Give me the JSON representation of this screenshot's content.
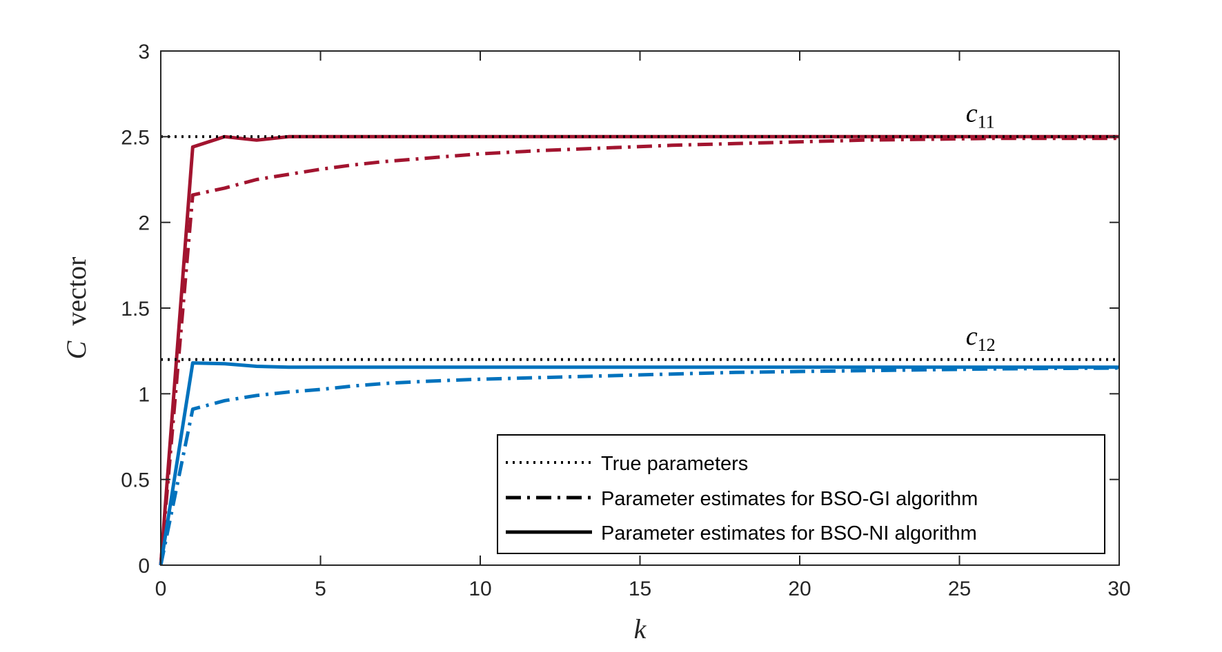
{
  "chart_data": {
    "type": "line",
    "xlabel": "k",
    "ylabel_symbol": "C",
    "ylabel_text": "vector",
    "xlim": [
      0,
      30
    ],
    "ylim": [
      0,
      3
    ],
    "xticks": [
      0,
      5,
      10,
      15,
      20,
      25,
      30
    ],
    "xtick_labels": [
      "0",
      "5",
      "10",
      "15",
      "20",
      "25",
      "30"
    ],
    "yticks": [
      0,
      0.5,
      1,
      1.5,
      2,
      2.5,
      3
    ],
    "ytick_labels": [
      "0",
      "0.5",
      "1",
      "1.5",
      "2",
      "2.5",
      "3"
    ],
    "grid": false,
    "legend_position": "bottom-right",
    "colors": {
      "c11": "#a2142f",
      "c12": "#0072bd",
      "true": "#000000",
      "axis": "#262626"
    },
    "annotations": [
      {
        "base": "c",
        "sub": "11",
        "x": 25.2,
        "y": 2.555
      },
      {
        "base": "c",
        "sub": "12",
        "x": 25.2,
        "y": 1.255
      }
    ],
    "legend": [
      {
        "label": "True parameters",
        "style": "dotted"
      },
      {
        "label": "Parameter estimates for BSO-GI algorithm",
        "style": "dashdot"
      },
      {
        "label": "Parameter estimates for BSO-NI algorithm",
        "style": "solid"
      }
    ],
    "series": [
      {
        "group": "c11",
        "kind": "true",
        "style": "dotted",
        "color": "#000000",
        "x": [
          0,
          30
        ],
        "y": [
          2.5,
          2.5
        ]
      },
      {
        "group": "c12",
        "kind": "true",
        "style": "dotted",
        "color": "#000000",
        "x": [
          0,
          30
        ],
        "y": [
          1.2,
          1.2
        ]
      },
      {
        "group": "c11",
        "kind": "BSO-GI",
        "style": "dashdot",
        "color": "#a2142f",
        "x": [
          0,
          1,
          2,
          3,
          4,
          5,
          6,
          7,
          8,
          9,
          10,
          12,
          14,
          16,
          18,
          20,
          22,
          24,
          26,
          28,
          30
        ],
        "y": [
          0,
          2.16,
          2.2,
          2.25,
          2.28,
          2.31,
          2.335,
          2.355,
          2.37,
          2.385,
          2.4,
          2.42,
          2.435,
          2.45,
          2.46,
          2.47,
          2.48,
          2.485,
          2.49,
          2.49,
          2.49
        ]
      },
      {
        "group": "c11",
        "kind": "BSO-NI",
        "style": "solid",
        "color": "#a2142f",
        "x": [
          0,
          1,
          2,
          3,
          4,
          5,
          30
        ],
        "y": [
          0,
          2.44,
          2.5,
          2.48,
          2.5,
          2.5,
          2.5
        ]
      },
      {
        "group": "c12",
        "kind": "BSO-GI",
        "style": "dashdot",
        "color": "#0072bd",
        "x": [
          0,
          1,
          2,
          3,
          4,
          5,
          6,
          7,
          8,
          9,
          10,
          12,
          14,
          16,
          18,
          20,
          22,
          24,
          26,
          28,
          30
        ],
        "y": [
          0,
          0.91,
          0.96,
          0.99,
          1.01,
          1.025,
          1.045,
          1.06,
          1.07,
          1.078,
          1.085,
          1.095,
          1.105,
          1.115,
          1.125,
          1.13,
          1.135,
          1.14,
          1.145,
          1.148,
          1.15
        ]
      },
      {
        "group": "c12",
        "kind": "BSO-NI",
        "style": "solid",
        "color": "#0072bd",
        "x": [
          0,
          1,
          2,
          3,
          4,
          5,
          30
        ],
        "y": [
          0,
          1.18,
          1.175,
          1.16,
          1.155,
          1.155,
          1.155
        ]
      }
    ]
  }
}
